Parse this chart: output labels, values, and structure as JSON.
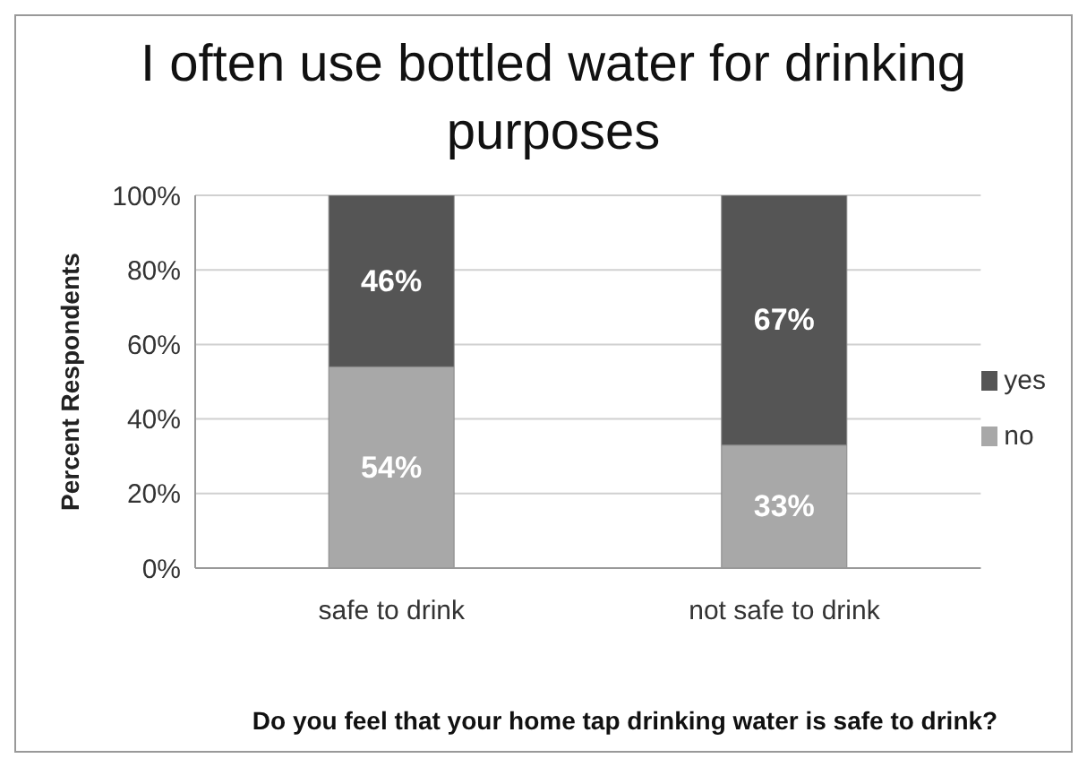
{
  "chart_data": {
    "type": "bar",
    "title": "I often use bottled water for drinking purposes",
    "xlabel": "Do you feel that your home tap drinking water is safe to drink?",
    "ylabel": "Percent Respondents",
    "categories": [
      "safe to drink",
      "not safe to drink"
    ],
    "series": [
      {
        "name": "no",
        "color": "#a8a8a8",
        "values": [
          54,
          33
        ],
        "value_labels": [
          "54%",
          "33%"
        ]
      },
      {
        "name": "yes",
        "color": "#555555",
        "values": [
          46,
          67
        ],
        "value_labels": [
          "46%",
          "67%"
        ]
      }
    ],
    "stacked": true,
    "ylim": [
      0,
      100
    ],
    "yticks": [
      {
        "value": 0,
        "label": "0%"
      },
      {
        "value": 20,
        "label": "20%"
      },
      {
        "value": 40,
        "label": "40%"
      },
      {
        "value": 60,
        "label": "60%"
      },
      {
        "value": 80,
        "label": "80%"
      },
      {
        "value": 100,
        "label": "100%"
      }
    ],
    "grid": "y",
    "legend": "right"
  }
}
